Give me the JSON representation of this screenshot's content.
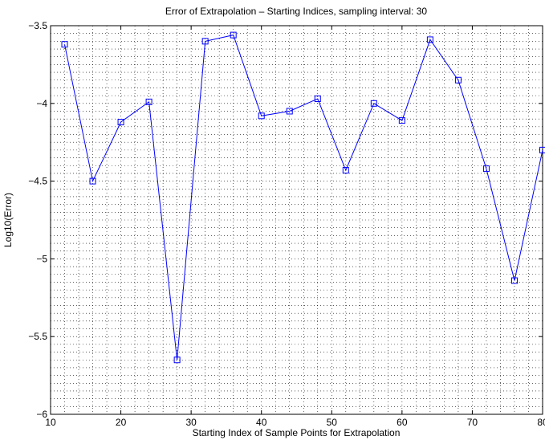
{
  "chart_data": {
    "type": "line",
    "title": "Error of Extrapolation – Starting Indices, sampling interval: 30",
    "xlabel": "Starting Index of Sample Points for Extrapolation",
    "ylabel": "Log10(Error)",
    "xlim": [
      10,
      80
    ],
    "ylim": [
      -6,
      -3.5
    ],
    "xticks": [
      10,
      20,
      30,
      40,
      50,
      60,
      70,
      80
    ],
    "yticks": [
      -6,
      -5.5,
      -5,
      -4.5,
      -4,
      -3.5
    ],
    "xtick_labels": [
      "10",
      "20",
      "30",
      "40",
      "50",
      "60",
      "70",
      "80"
    ],
    "ytick_labels": [
      "−6",
      "−5.5",
      "−5",
      "−4.5",
      "−4",
      "−3.5"
    ],
    "grid": "on (dotted, major and minor)",
    "series": [
      {
        "color": "#0000ff",
        "marker": "square",
        "x": [
          12,
          16,
          20,
          24,
          28,
          32,
          36,
          40,
          44,
          48,
          52,
          56,
          60,
          64,
          68,
          72,
          76,
          80
        ],
        "y": [
          -3.62,
          -4.5,
          -4.12,
          -3.99,
          -5.65,
          -3.6,
          -3.56,
          -4.08,
          -4.05,
          -3.97,
          -4.43,
          -4.0,
          -4.11,
          -3.59,
          -3.85,
          -4.42,
          -5.14,
          -4.3
        ]
      }
    ]
  }
}
